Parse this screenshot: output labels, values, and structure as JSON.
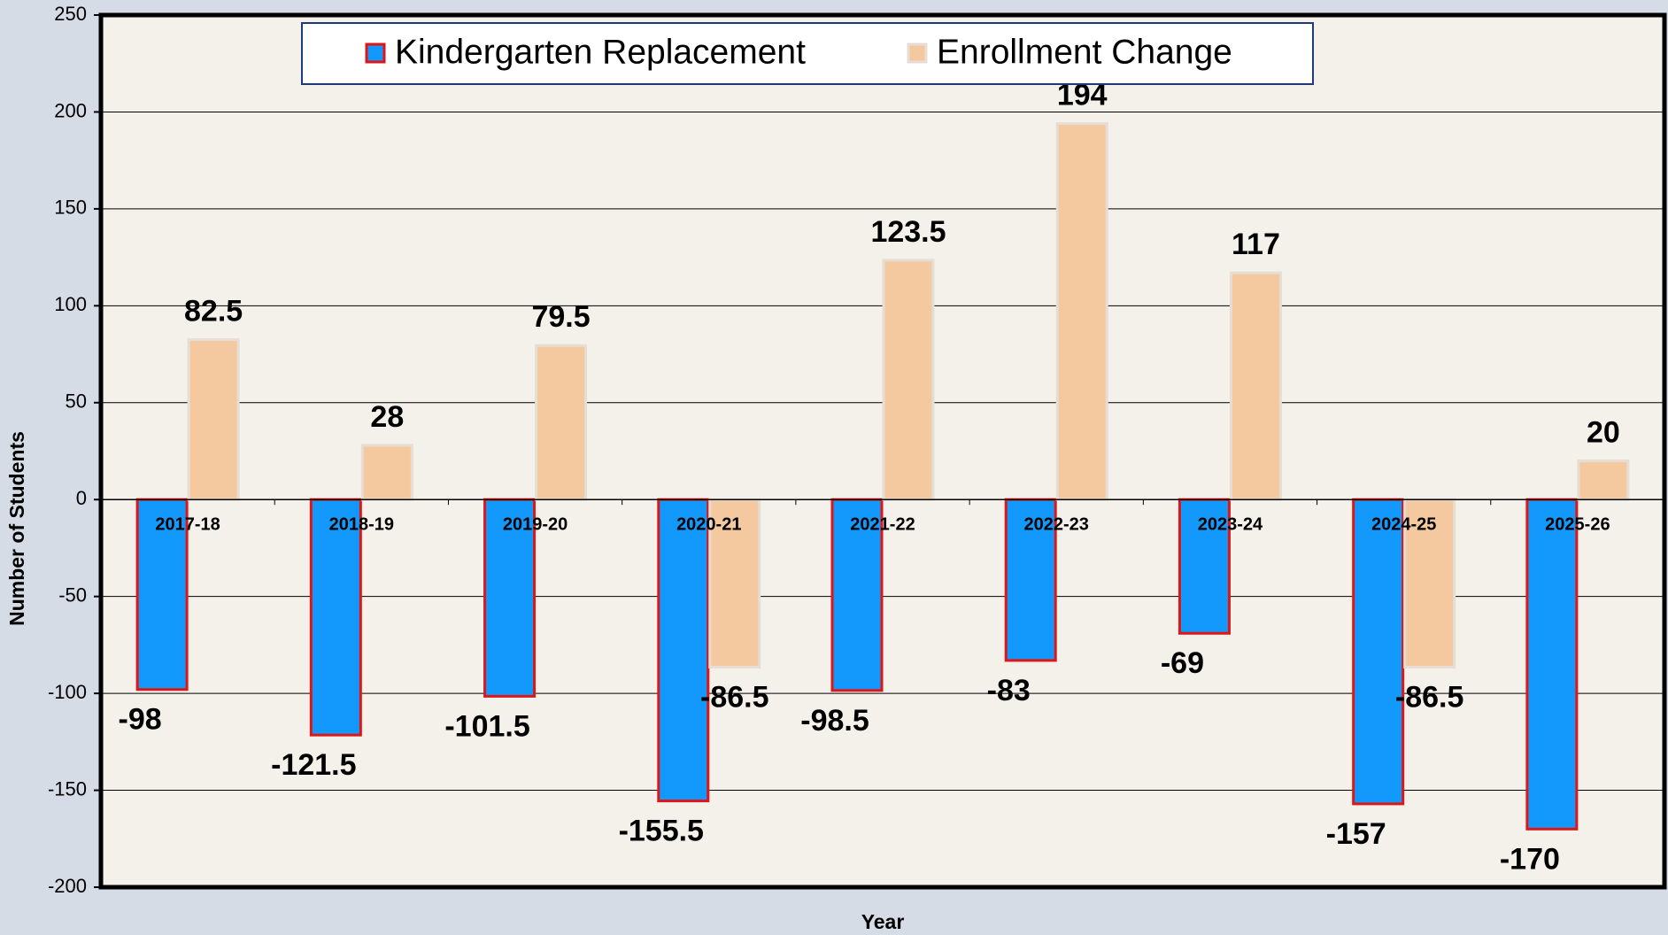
{
  "chart_data": {
    "type": "bar",
    "categories": [
      "2017-18",
      "2018-19",
      "2019-20",
      "2020-21",
      "2021-22",
      "2022-23",
      "2023-24",
      "2024-25",
      "2025-26"
    ],
    "series": [
      {
        "name": "Kindergarten Replacement",
        "color": "#1399fb",
        "values": [
          -98,
          -121.5,
          -101.5,
          -155.5,
          -98.5,
          -83,
          -69,
          -157,
          -170
        ]
      },
      {
        "name": "Enrollment Change",
        "color": "#f4c9a0",
        "values": [
          82.5,
          28,
          79.5,
          -86.5,
          123.5,
          194,
          117,
          -86.5,
          20
        ]
      }
    ],
    "ylim": [
      -200,
      250
    ],
    "yticks": [
      -200,
      -150,
      -100,
      -50,
      0,
      50,
      100,
      150,
      200,
      250
    ],
    "xlabel": "Year",
    "ylabel": "Number of Students",
    "grid": true,
    "legend": "top"
  }
}
